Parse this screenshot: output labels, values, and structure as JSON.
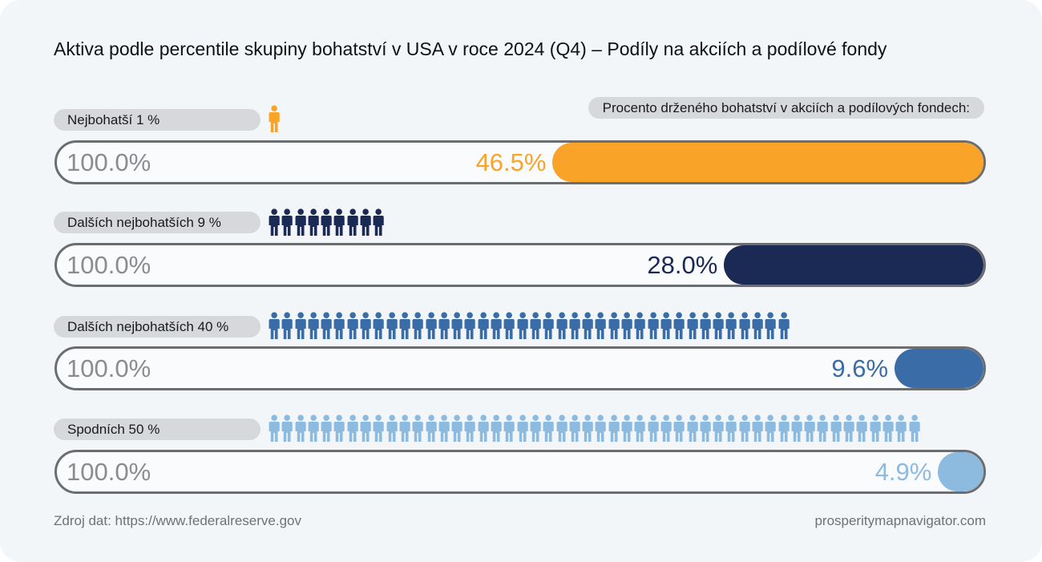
{
  "title": "Aktiva podle percentile skupiny bohatství v USA v roce 2024 (Q4) – Podíly na akciích a podílové fondy",
  "legend_label": "Procento drženého bohatství v akciích a podílových fondech:",
  "footer": {
    "source": "Zdroj dat: https://www.federalreserve.gov",
    "site": "prosperitymapnavigator.com"
  },
  "chart_data": {
    "type": "bar",
    "title": "Aktiva podle percentile skupiny bohatství v USA v roce 2024 (Q4) – Podíly na akciích a podílové fondy",
    "categories": [
      "Nejbohatší 1 %",
      "Dalších nejbohatších 9 %",
      "Dalších nejbohatších 40 %",
      "Spodních 50 %"
    ],
    "values": [
      46.5,
      28.0,
      9.6,
      4.9
    ],
    "value_labels": [
      "46.5%",
      "28.0%",
      "9.6%",
      "4.9%"
    ],
    "total_label": "100.0%",
    "people_counts": [
      1,
      9,
      40,
      50
    ],
    "colors": [
      "#f9a329",
      "#1b2a55",
      "#3a6ca8",
      "#8dbbe0"
    ],
    "ylim": [
      0,
      100
    ]
  }
}
